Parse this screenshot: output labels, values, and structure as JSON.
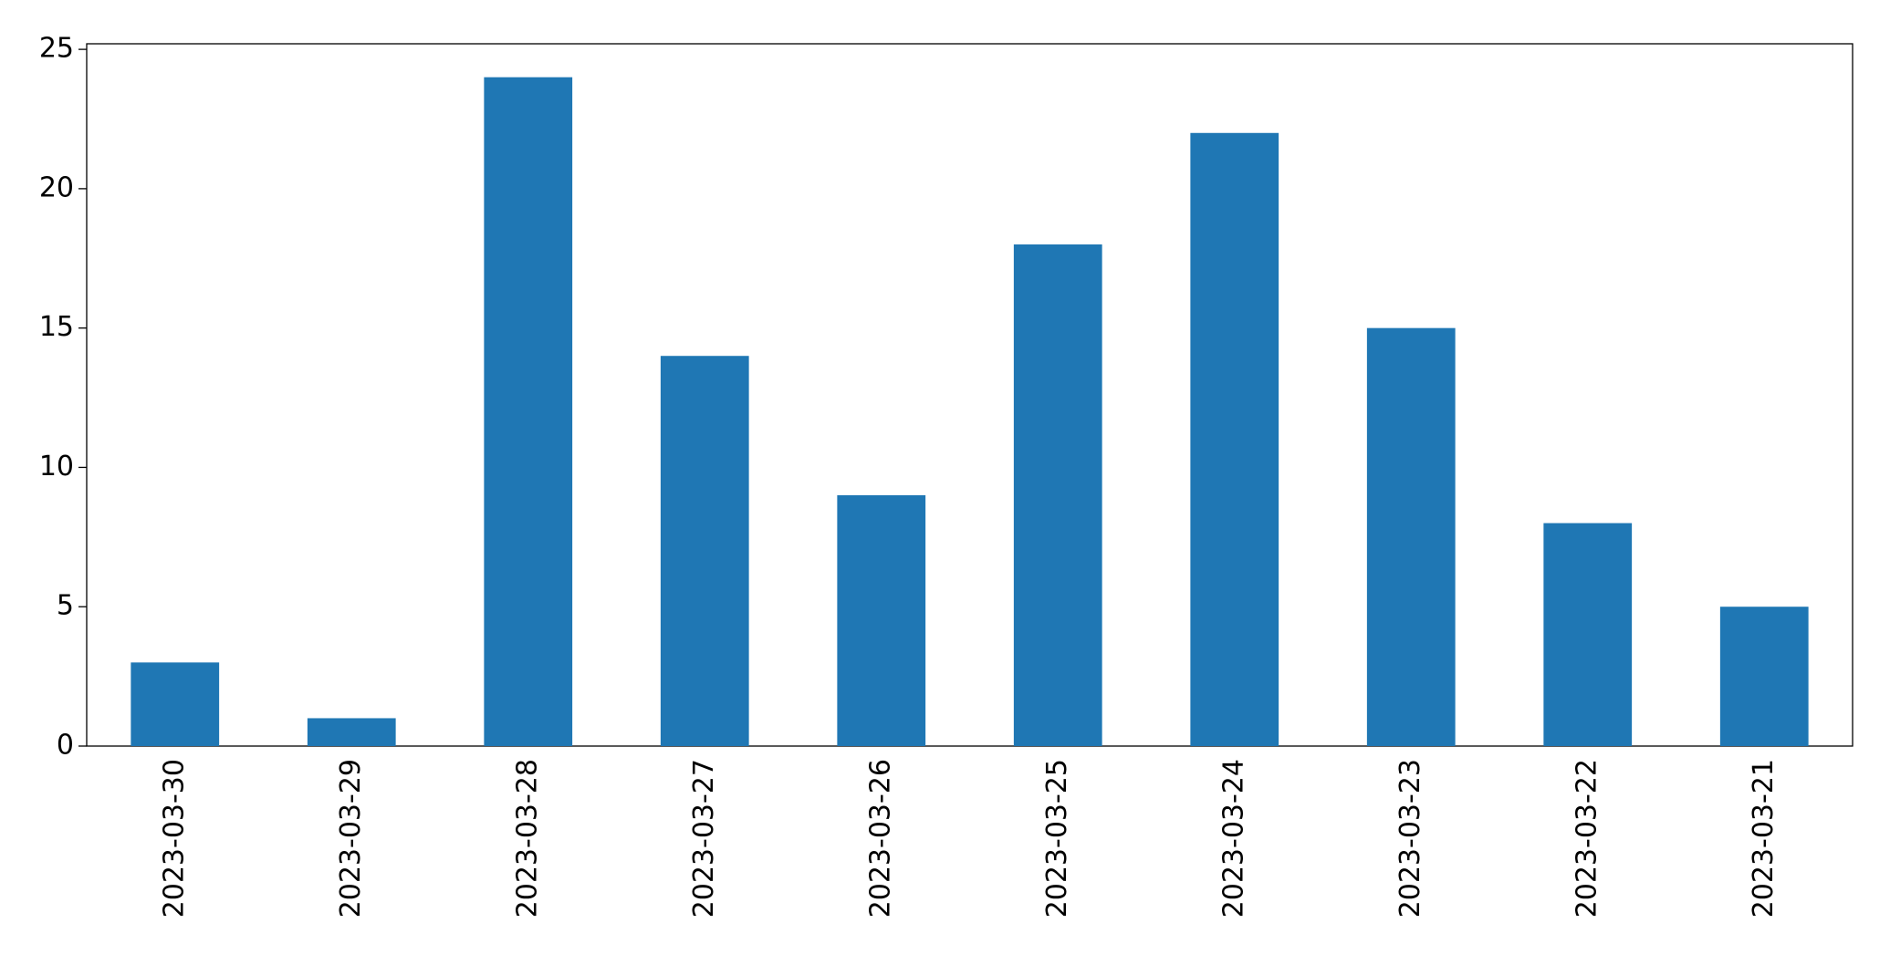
{
  "chart_data": {
    "type": "bar",
    "categories": [
      "2023-03-30",
      "2023-03-29",
      "2023-03-28",
      "2023-03-27",
      "2023-03-26",
      "2023-03-25",
      "2023-03-24",
      "2023-03-23",
      "2023-03-22",
      "2023-03-21"
    ],
    "values": [
      3,
      1,
      24,
      14,
      9,
      18,
      22,
      15,
      8,
      5
    ],
    "color": "#1f77b4",
    "ylim": [
      0,
      25.2
    ],
    "yticks": [
      0,
      5,
      10,
      15,
      20,
      25
    ],
    "grid": false
  }
}
